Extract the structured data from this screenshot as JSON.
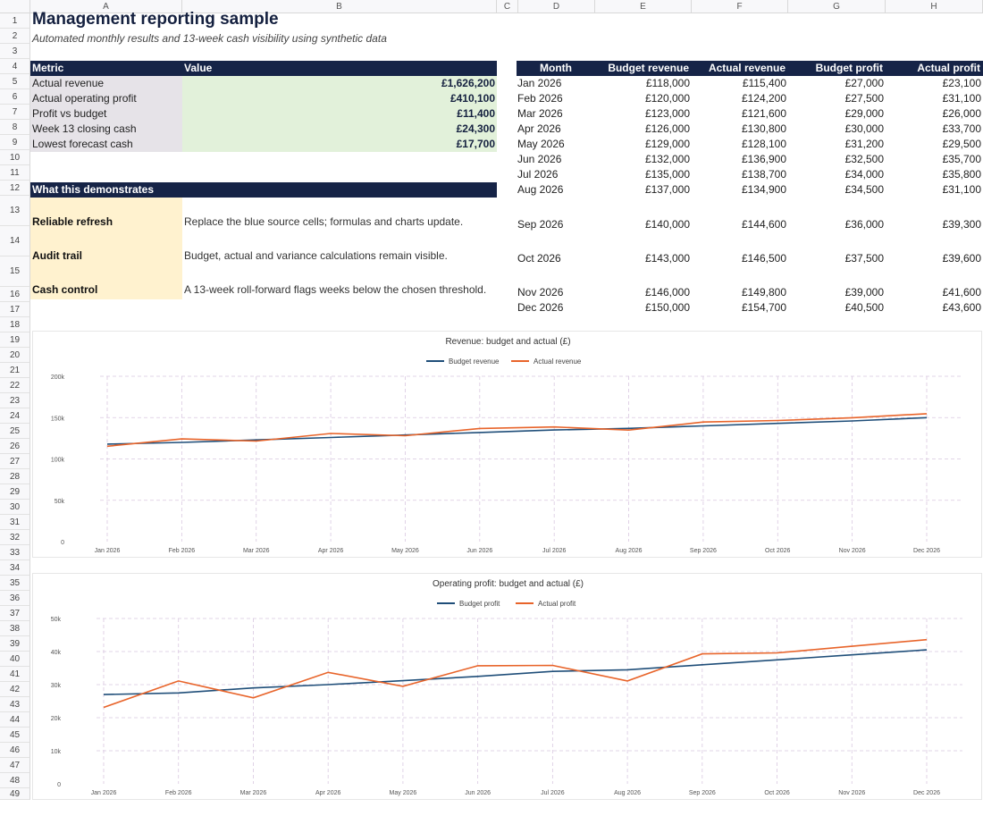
{
  "sheet": {
    "columns": [
      "A",
      "B",
      "C",
      "D",
      "E",
      "F",
      "G",
      "H"
    ],
    "rows": [
      "1",
      "2",
      "3",
      "4",
      "5",
      "6",
      "7",
      "8",
      "9",
      "10",
      "11",
      "12",
      "13",
      "14",
      "15",
      "16",
      "17",
      "18",
      "19",
      "20",
      "21",
      "22",
      "23",
      "24",
      "25",
      "26",
      "27",
      "28",
      "29",
      "30",
      "31",
      "32",
      "33",
      "34",
      "35",
      "36",
      "37",
      "38",
      "39",
      "40",
      "41",
      "42",
      "43",
      "44",
      "45",
      "46",
      "47",
      "48",
      "49"
    ]
  },
  "title": "Management reporting sample",
  "subtitle": "Automated monthly results and 13-week cash visibility using synthetic data",
  "kpi": {
    "headers": [
      "Metric",
      "Value"
    ],
    "rows": [
      {
        "metric": "Actual revenue",
        "value": "£1,626,200"
      },
      {
        "metric": "Actual operating profit",
        "value": "£410,100"
      },
      {
        "metric": "Profit vs budget",
        "value": "£11,400"
      },
      {
        "metric": "Week 13 closing cash",
        "value": "£24,300"
      },
      {
        "metric": "Lowest forecast cash",
        "value": "£17,700"
      }
    ],
    "colors": {
      "metric_bg": "#e6e3e8",
      "value_bg": "#e2f1da"
    }
  },
  "demo": {
    "header": "What this demonstrates",
    "rows": [
      {
        "label": "Reliable refresh",
        "text": "Replace the blue source cells; formulas and charts update."
      },
      {
        "label": "Audit trail",
        "text": "Budget, actual and variance calculations remain visible."
      },
      {
        "label": "Cash control",
        "text": "A 13-week roll-forward flags weeks below the chosen threshold."
      }
    ],
    "colors": {
      "label_bg": "#fff2cf"
    }
  },
  "monthly": {
    "headers": [
      "Month",
      "Budget revenue",
      "Actual revenue",
      "Budget profit",
      "Actual profit"
    ],
    "rows": [
      [
        "Jan 2026",
        "£118,000",
        "£115,400",
        "£27,000",
        "£23,100"
      ],
      [
        "Feb 2026",
        "£120,000",
        "£124,200",
        "£27,500",
        "£31,100"
      ],
      [
        "Mar 2026",
        "£123,000",
        "£121,600",
        "£29,000",
        "£26,000"
      ],
      [
        "Apr 2026",
        "£126,000",
        "£130,800",
        "£30,000",
        "£33,700"
      ],
      [
        "May 2026",
        "£129,000",
        "£128,100",
        "£31,200",
        "£29,500"
      ],
      [
        "Jun 2026",
        "£132,000",
        "£136,900",
        "£32,500",
        "£35,700"
      ],
      [
        "Jul 2026",
        "£135,000",
        "£138,700",
        "£34,000",
        "£35,800"
      ],
      [
        "Aug 2026",
        "£137,000",
        "£134,900",
        "£34,500",
        "£31,100"
      ],
      [
        "Sep 2026",
        "£140,000",
        "£144,600",
        "£36,000",
        "£39,300"
      ],
      [
        "Oct 2026",
        "£143,000",
        "£146,500",
        "£37,500",
        "£39,600"
      ],
      [
        "Nov 2026",
        "£146,000",
        "£149,800",
        "£39,000",
        "£41,600"
      ],
      [
        "Dec 2026",
        "£150,000",
        "£154,700",
        "£40,500",
        "£43,600"
      ]
    ]
  },
  "colors": {
    "header_bg": "#162447",
    "budget_line": "#1f4e79",
    "actual_line": "#e8642a",
    "grid": "#d9c8e0"
  },
  "chart_data": [
    {
      "type": "line",
      "title": "Revenue: budget and actual (£)",
      "categories": [
        "Jan 2026",
        "Feb 2026",
        "Mar 2026",
        "Apr 2026",
        "May 2026",
        "Jun 2026",
        "Jul 2026",
        "Aug 2026",
        "Sep 2026",
        "Oct 2026",
        "Nov 2026",
        "Dec 2026"
      ],
      "series": [
        {
          "name": "Budget revenue",
          "values": [
            118000,
            120000,
            123000,
            126000,
            129000,
            132000,
            135000,
            137000,
            140000,
            143000,
            146000,
            150000
          ]
        },
        {
          "name": "Actual revenue",
          "values": [
            115400,
            124200,
            121600,
            130800,
            128100,
            136900,
            138700,
            134900,
            144600,
            146500,
            149800,
            154700
          ]
        }
      ],
      "ylim": [
        0,
        200000
      ],
      "yticks": [
        0,
        50000,
        100000,
        150000,
        200000
      ],
      "ytick_labels": [
        "0",
        "50k",
        "100k",
        "150k",
        "200k"
      ],
      "grid": true,
      "legend": "top"
    },
    {
      "type": "line",
      "title": "Operating profit: budget and actual (£)",
      "categories": [
        "Jan 2026",
        "Feb 2026",
        "Mar 2026",
        "Apr 2026",
        "May 2026",
        "Jun 2026",
        "Jul 2026",
        "Aug 2026",
        "Sep 2026",
        "Oct 2026",
        "Nov 2026",
        "Dec 2026"
      ],
      "series": [
        {
          "name": "Budget profit",
          "values": [
            27000,
            27500,
            29000,
            30000,
            31200,
            32500,
            34000,
            34500,
            36000,
            37500,
            39000,
            40500
          ]
        },
        {
          "name": "Actual profit",
          "values": [
            23100,
            31100,
            26000,
            33700,
            29500,
            35700,
            35800,
            31100,
            39300,
            39600,
            41600,
            43600
          ]
        }
      ],
      "ylim": [
        0,
        50000
      ],
      "yticks": [
        0,
        10000,
        20000,
        30000,
        40000,
        50000
      ],
      "ytick_labels": [
        "0",
        "10k",
        "20k",
        "30k",
        "40k",
        "50k"
      ],
      "grid": true,
      "legend": "top"
    }
  ]
}
